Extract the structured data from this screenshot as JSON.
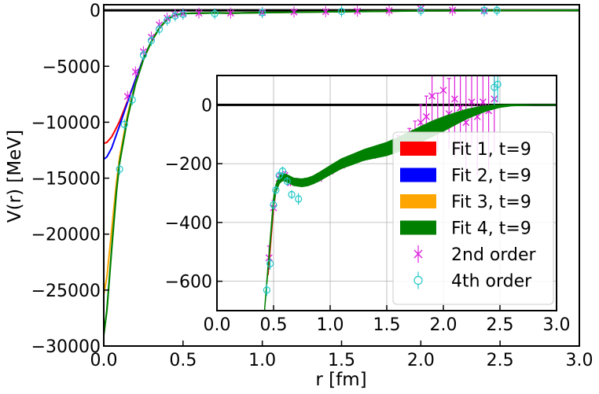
{
  "chart_data": [
    {
      "type": "line",
      "panel": "main",
      "xlabel": "r [fm]",
      "ylabel": "V(r) [MeV]",
      "xlim": [
        0.0,
        3.0
      ],
      "ylim": [
        -30000,
        500
      ],
      "xticks": [
        0.0,
        0.5,
        1.0,
        1.5,
        2.0,
        2.5,
        3.0
      ],
      "xtick_labels": [
        "0.0",
        "0.5",
        "1.0",
        "1.5",
        "2.0",
        "2.5",
        "3.0"
      ],
      "yticks": [
        0,
        -5000,
        -10000,
        -15000,
        -20000,
        -25000,
        -30000
      ],
      "ytick_labels": [
        "0",
        "−5000",
        "−10000",
        "−15000",
        "−20000",
        "−25000",
        "−30000"
      ],
      "grid": false,
      "zero_line": true,
      "series": [
        {
          "name": "Fit 1, t=9",
          "color": "#ff0000",
          "x": [
            0.0,
            0.02,
            0.05,
            0.08,
            0.1,
            0.15,
            0.2,
            0.25,
            0.3,
            0.35,
            0.4,
            0.45,
            0.5,
            0.6,
            0.7,
            0.8,
            1.0,
            1.5,
            2.0,
            2.5,
            3.0
          ],
          "y": [
            -11900,
            -11800,
            -11300,
            -10500,
            -9900,
            -8100,
            -6200,
            -4300,
            -2800,
            -1600,
            -800,
            -420,
            -280,
            -260,
            -230,
            -250,
            -200,
            -120,
            -40,
            -10,
            0
          ]
        },
        {
          "name": "Fit 2, t=9",
          "color": "#0000ff",
          "x": [
            0.0,
            0.02,
            0.05,
            0.08,
            0.1,
            0.15,
            0.2,
            0.25,
            0.3,
            0.35,
            0.4,
            0.45,
            0.5,
            0.6,
            0.7,
            0.8,
            1.0,
            1.5,
            2.0,
            2.5,
            3.0
          ],
          "y": [
            -13300,
            -13100,
            -12300,
            -11100,
            -10300,
            -8200,
            -6200,
            -4300,
            -2800,
            -1600,
            -800,
            -420,
            -280,
            -260,
            -230,
            -250,
            -200,
            -120,
            -40,
            -10,
            0
          ]
        },
        {
          "name": "Fit 3, t=9",
          "color": "#ffa500",
          "x": [
            0.0,
            0.02,
            0.05,
            0.08,
            0.1,
            0.15,
            0.2,
            0.25,
            0.3,
            0.35,
            0.4,
            0.45,
            0.5,
            0.6,
            0.7,
            0.8,
            1.0,
            1.5,
            2.0,
            2.5,
            3.0
          ],
          "y": [
            -25400,
            -23800,
            -19600,
            -15400,
            -13100,
            -9300,
            -6500,
            -4400,
            -2800,
            -1600,
            -800,
            -420,
            -280,
            -260,
            -230,
            -250,
            -200,
            -120,
            -40,
            -10,
            0
          ]
        },
        {
          "name": "Fit 4, t=9",
          "color": "#008000",
          "x": [
            0.0,
            0.02,
            0.05,
            0.08,
            0.1,
            0.15,
            0.2,
            0.25,
            0.3,
            0.35,
            0.4,
            0.45,
            0.5,
            0.6,
            0.7,
            0.8,
            1.0,
            1.5,
            2.0,
            2.5,
            3.0
          ],
          "y": [
            -29000,
            -26800,
            -21300,
            -16200,
            -13600,
            -9600,
            -6600,
            -4400,
            -2800,
            -1600,
            -800,
            -420,
            -280,
            -260,
            -230,
            -250,
            -200,
            -120,
            -40,
            -10,
            0
          ]
        },
        {
          "name": "2nd order",
          "color": "#dd22dd",
          "marker": "x",
          "x": [
            0.15,
            0.2,
            0.25,
            0.3,
            0.35,
            0.4,
            0.45,
            0.5,
            0.6,
            0.8,
            1.0,
            1.2,
            1.4,
            1.6,
            1.8,
            2.0,
            2.2,
            2.4
          ],
          "y": [
            -7700,
            -5500,
            -3700,
            -2400,
            -1300,
            -700,
            -380,
            -300,
            -250,
            -250,
            -200,
            -150,
            -120,
            -80,
            -30,
            150,
            0,
            -50
          ]
        },
        {
          "name": "4th order",
          "color": "#22c7c7",
          "marker": "o",
          "x": [
            0.1,
            0.13,
            0.18,
            0.25,
            0.3,
            0.35,
            0.4,
            0.45,
            0.5,
            0.7,
            1.0,
            1.5,
            2.0,
            2.4,
            2.48
          ],
          "y": [
            -14200,
            -10200,
            -8000,
            -4000,
            -2700,
            -1700,
            -900,
            -500,
            -350,
            -300,
            -200,
            -100,
            -20,
            -10,
            0
          ]
        }
      ]
    },
    {
      "type": "line",
      "panel": "inset",
      "xlim": [
        0.0,
        3.0
      ],
      "ylim": [
        -700,
        100
      ],
      "xticks": [
        0.0,
        0.5,
        1.0,
        1.5,
        2.0,
        2.5,
        3.0
      ],
      "xtick_labels": [
        "0.0",
        "0.5",
        "1.0",
        "1.5",
        "2.0",
        "2.5",
        "3.0"
      ],
      "yticks": [
        0,
        -200,
        -400,
        -600
      ],
      "ytick_labels": [
        "0",
        "−200",
        "−400",
        "−600"
      ],
      "grid": true,
      "zero_line": true,
      "legend_position": "lower-right",
      "band": {
        "name": "Fit 4, t=9",
        "color": "#008000",
        "x": [
          0.42,
          0.45,
          0.48,
          0.5,
          0.52,
          0.55,
          0.58,
          0.62,
          0.68,
          0.75,
          0.8,
          0.85,
          0.9,
          1.0,
          1.1,
          1.2,
          1.3,
          1.4,
          1.5,
          1.6,
          1.7,
          1.8,
          1.9,
          2.0,
          2.1,
          2.2,
          2.3,
          2.4,
          2.5,
          2.6,
          2.8,
          3.0
        ],
        "y": [
          -700,
          -560,
          -420,
          -330,
          -285,
          -255,
          -245,
          -250,
          -262,
          -265,
          -262,
          -255,
          -245,
          -222,
          -200,
          -185,
          -170,
          -160,
          -150,
          -135,
          -118,
          -100,
          -82,
          -65,
          -48,
          -32,
          -20,
          -10,
          -4,
          -1,
          0,
          0
        ],
        "halfwidth": [
          0,
          5,
          8,
          12,
          12,
          12,
          12,
          12,
          12,
          13,
          13,
          13,
          14,
          15,
          16,
          17,
          18,
          20,
          22,
          24,
          25,
          26,
          26,
          24,
          20,
          16,
          12,
          8,
          4,
          2,
          0,
          0
        ]
      },
      "red_curve": {
        "x": [
          0.45,
          0.48,
          0.5,
          0.52,
          0.55
        ],
        "y": [
          -580,
          -440,
          -345,
          -292,
          -258
        ]
      },
      "second_order": {
        "x": [
          0.46,
          0.5,
          0.55,
          0.6,
          0.65,
          0.7,
          0.8,
          0.9,
          1.0,
          1.1,
          1.2,
          1.3,
          1.4,
          1.5,
          1.6,
          1.7,
          1.75,
          1.8,
          1.85,
          1.9,
          1.95,
          2.0,
          2.05,
          2.1,
          2.15,
          2.2,
          2.25,
          2.3,
          2.35,
          2.4,
          2.45
        ],
        "y": [
          -520,
          -350,
          -250,
          -240,
          -265,
          -262,
          -262,
          -250,
          -225,
          -205,
          -185,
          -175,
          -165,
          -150,
          -130,
          -110,
          -95,
          -60,
          -40,
          30,
          -60,
          50,
          -30,
          20,
          -10,
          -60,
          10,
          -40,
          10,
          -20,
          20
        ],
        "err": [
          40,
          25,
          15,
          12,
          12,
          12,
          12,
          12,
          13,
          14,
          15,
          16,
          18,
          20,
          25,
          30,
          40,
          60,
          70,
          120,
          100,
          150,
          120,
          200,
          150,
          180,
          150,
          200,
          150,
          200,
          180
        ]
      },
      "fourth_order": {
        "x": [
          0.44,
          0.47,
          0.5,
          0.52,
          0.55,
          0.58,
          0.62,
          0.66,
          0.72,
          2.45,
          2.48
        ],
        "y": [
          -630,
          -540,
          -340,
          -290,
          -240,
          -225,
          -260,
          -305,
          -320,
          60,
          70
        ],
        "err": [
          20,
          20,
          15,
          15,
          15,
          15,
          15,
          15,
          20,
          60,
          60
        ]
      },
      "legend": [
        {
          "label": "Fit 1, t=9",
          "kind": "patch",
          "color": "#ff0000"
        },
        {
          "label": "Fit 2, t=9",
          "kind": "patch",
          "color": "#0000ff"
        },
        {
          "label": "Fit 3, t=9",
          "kind": "patch",
          "color": "#ffa500"
        },
        {
          "label": "Fit 4, t=9",
          "kind": "patch",
          "color": "#008000"
        },
        {
          "label": "2nd order",
          "kind": "x-marker",
          "color": "#dd22dd"
        },
        {
          "label": "4th order",
          "kind": "o-marker",
          "color": "#22c7c7"
        }
      ]
    }
  ]
}
